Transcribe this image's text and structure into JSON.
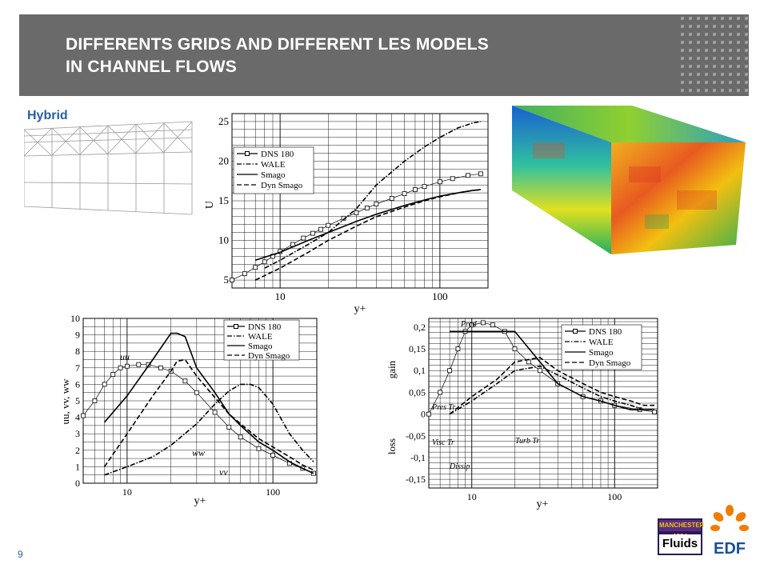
{
  "slide": {
    "title_line1": "DIFFERENTS GRIDS AND DIFFERENT LES MODELS",
    "title_line2": "IN CHANNEL FLOWS",
    "hybrid_label": "Hybrid",
    "page_number": "9"
  },
  "logos": {
    "manchester_top": "MANCHESTER 1824",
    "manchester_bottom": "Fluids",
    "edf": "EDF"
  },
  "colors": {
    "title_bg": "#6a6a6a",
    "accent": "#2b5f9e",
    "edf_orange": "#f07d00",
    "edf_blue": "#1a4f9c"
  },
  "chart_data": [
    {
      "type": "line",
      "xlabel": "y+",
      "ylabel": "U",
      "xscale": "log",
      "xlim": [
        5,
        200
      ],
      "ylim": [
        4,
        26
      ],
      "yticks": [
        "5",
        "10",
        "15",
        "20",
        "25"
      ],
      "xticks": [
        "10",
        "100"
      ],
      "legend": [
        "DNS 180",
        "WALE",
        "Smago",
        "Dyn Smago"
      ],
      "series": [
        {
          "name": "DNS 180",
          "style": "squares",
          "x": [
            5,
            6,
            7,
            8,
            9,
            10,
            12,
            14,
            16,
            18,
            20,
            25,
            30,
            35,
            40,
            50,
            60,
            70,
            80,
            100,
            120,
            150,
            180
          ],
          "y": [
            5,
            5.8,
            6.6,
            7.3,
            8,
            8.6,
            9.5,
            10.3,
            10.9,
            11.4,
            11.9,
            12.8,
            13.5,
            14.1,
            14.6,
            15.3,
            15.9,
            16.4,
            16.8,
            17.4,
            17.8,
            18.2,
            18.4
          ]
        },
        {
          "name": "WALE",
          "style": "dashdot",
          "x": [
            8,
            10,
            15,
            20,
            30,
            40,
            60,
            80,
            100,
            130,
            160,
            180
          ],
          "y": [
            6.5,
            7.5,
            9.5,
            11,
            14,
            17,
            20,
            21.8,
            23,
            24.2,
            24.8,
            25
          ]
        },
        {
          "name": "Smago",
          "style": "solid",
          "x": [
            7,
            10,
            15,
            20,
            30,
            40,
            60,
            80,
            100,
            130,
            160,
            180
          ],
          "y": [
            7.5,
            8.5,
            10,
            11,
            12.4,
            13.3,
            14.4,
            15.1,
            15.6,
            16,
            16.3,
            16.4
          ]
        },
        {
          "name": "Dyn Smago",
          "style": "dashed",
          "x": [
            7,
            10,
            15,
            20,
            30,
            40,
            60,
            80,
            100,
            130,
            160,
            180
          ],
          "y": [
            5,
            6.5,
            8.5,
            10,
            11.8,
            13,
            14.2,
            15,
            15.5,
            16,
            16.3,
            16.4
          ]
        }
      ]
    },
    {
      "type": "line",
      "xlabel": "y+",
      "ylabel": "uu, vv, ww",
      "xscale": "log",
      "xlim": [
        5,
        200
      ],
      "ylim": [
        0,
        10
      ],
      "yticks": [
        "0",
        "1",
        "2",
        "3",
        "4",
        "5",
        "6",
        "7",
        "8",
        "9",
        "10"
      ],
      "xticks": [
        "10",
        "100"
      ],
      "annotations": [
        "uu",
        "ww",
        "vv"
      ],
      "legend": [
        "DNS 180",
        "WALE",
        "Smago",
        "Dyn Smago"
      ],
      "series": [
        {
          "name": "DNS 180",
          "style": "squares",
          "x": [
            5,
            6,
            7,
            8,
            9,
            10,
            12,
            14,
            17,
            20,
            25,
            30,
            40,
            50,
            60,
            80,
            100,
            130,
            160,
            190
          ],
          "y": [
            4.1,
            5,
            6,
            6.6,
            7,
            7.1,
            7.2,
            7.2,
            7,
            6.8,
            6.2,
            5.5,
            4.3,
            3.4,
            2.8,
            2.1,
            1.7,
            1.2,
            0.9,
            0.6
          ]
        },
        {
          "name": "WALE",
          "style": "dashdot",
          "x": [
            7,
            10,
            15,
            20,
            30,
            40,
            50,
            60,
            70,
            80,
            100,
            130,
            160,
            190
          ],
          "y": [
            0.5,
            1,
            1.6,
            2.3,
            3.6,
            4.8,
            5.6,
            6,
            6,
            5.8,
            4.8,
            3,
            2,
            1.3
          ]
        },
        {
          "name": "Smago",
          "style": "solid",
          "x": [
            7,
            10,
            15,
            20,
            22,
            25,
            30,
            40,
            50,
            60,
            80,
            100,
            130,
            160,
            190
          ],
          "y": [
            3.7,
            5.3,
            7.5,
            9.1,
            9.1,
            8.9,
            7,
            5.5,
            4.2,
            3.5,
            2.5,
            2,
            1.3,
            0.9,
            0.6
          ]
        },
        {
          "name": "Dyn Smago",
          "style": "dashed",
          "x": [
            7,
            10,
            15,
            20,
            22,
            25,
            30,
            40,
            50,
            60,
            80,
            100,
            130,
            160,
            190
          ],
          "y": [
            1,
            3,
            5.3,
            6.8,
            7.4,
            7.5,
            6.5,
            5.2,
            4.2,
            3.6,
            2.7,
            2.2,
            1.6,
            1.1,
            0.8
          ]
        }
      ]
    },
    {
      "type": "line",
      "xlabel": "y+",
      "ylabel_top": "gain",
      "ylabel_bottom": "loss",
      "xscale": "log",
      "xlim": [
        5,
        200
      ],
      "ylim": [
        -0.17,
        0.22
      ],
      "yticks": [
        "0,2",
        "0,15",
        "0,1",
        "0,05",
        "0",
        "-0,05",
        "-0,1",
        "-0,15"
      ],
      "xticks": [
        "10",
        "100"
      ],
      "annotations": [
        "Prod",
        "Pres Tr",
        "Visc Tr",
        "Turb Tr",
        "Dissip"
      ],
      "legend": [
        "DNS 180",
        "WALE",
        "Smago",
        "Dyn Smago"
      ],
      "series": [
        {
          "name": "DNS 180",
          "style": "squares",
          "x": [
            5,
            6,
            7,
            8,
            9,
            10,
            12,
            14,
            17,
            20,
            25,
            30,
            40,
            60,
            80,
            100,
            150,
            190
          ],
          "y": [
            0,
            0.05,
            0.1,
            0.15,
            0.19,
            0.205,
            0.21,
            0.205,
            0.19,
            0.15,
            0.12,
            0.1,
            0.07,
            0.04,
            0.03,
            0.02,
            0.01,
            0.005
          ]
        },
        {
          "name": "WALE",
          "style": "dashdot",
          "x": [
            7,
            10,
            15,
            20,
            30,
            40,
            60,
            80,
            100,
            130,
            160,
            190
          ],
          "y": [
            0,
            0.03,
            0.07,
            0.1,
            0.11,
            0.09,
            0.06,
            0.04,
            0.03,
            0.02,
            0.01,
            0.01
          ]
        },
        {
          "name": "Smago",
          "style": "solid",
          "x": [
            7,
            10,
            15,
            20,
            30,
            40,
            60,
            80,
            100,
            130,
            160,
            190
          ],
          "y": [
            0.19,
            0.19,
            0.19,
            0.19,
            0.12,
            0.07,
            0.04,
            0.03,
            0.02,
            0.01,
            0.01,
            0.01
          ]
        },
        {
          "name": "Dyn Smago",
          "style": "dashed",
          "x": [
            7,
            10,
            15,
            20,
            30,
            40,
            60,
            80,
            100,
            130,
            160,
            190
          ],
          "y": [
            0,
            0.04,
            0.08,
            0.12,
            0.13,
            0.1,
            0.07,
            0.05,
            0.04,
            0.03,
            0.02,
            0.02
          ]
        }
      ]
    }
  ]
}
